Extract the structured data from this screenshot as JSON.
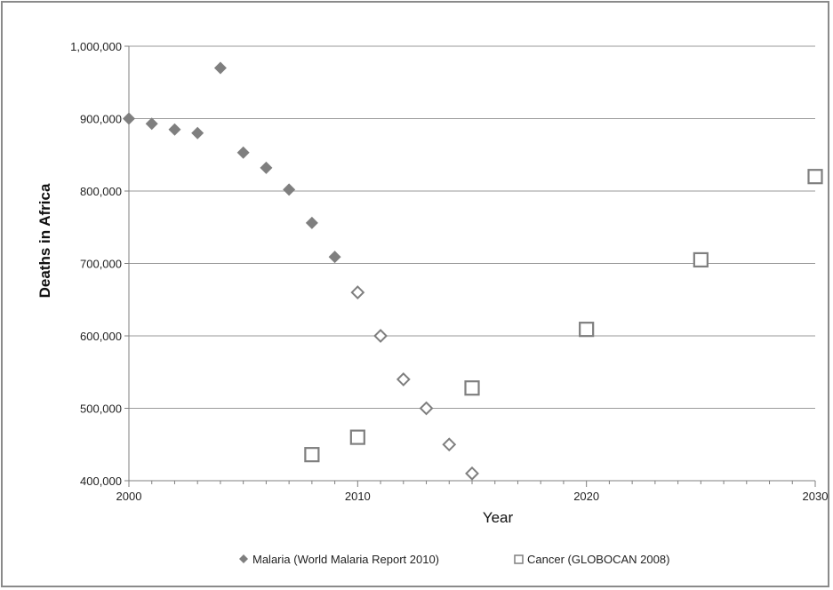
{
  "chart_data": {
    "type": "scatter",
    "xlabel": "Year",
    "ylabel": "Deaths in Africa",
    "xlim": [
      2000,
      2030
    ],
    "ylim": [
      400000,
      1000000
    ],
    "x_ticks": [
      2000,
      2010,
      2020,
      2030
    ],
    "y_ticks": [
      400000,
      500000,
      600000,
      700000,
      800000,
      900000,
      1000000
    ],
    "y_tick_labels": [
      "400,000",
      "500,000",
      "600,000",
      "700,000",
      "800,000",
      "900,000",
      "1,000,000"
    ],
    "grid": "horizontal",
    "legend_position": "bottom",
    "series": [
      {
        "name": "Malaria (World Malaria Report 2010)",
        "marker": "filled-diamond",
        "color": "#7f7f7f",
        "points": [
          {
            "x": 2000,
            "y": 900000
          },
          {
            "x": 2001,
            "y": 893000
          },
          {
            "x": 2002,
            "y": 885000
          },
          {
            "x": 2003,
            "y": 880000
          },
          {
            "x": 2004,
            "y": 970000
          },
          {
            "x": 2005,
            "y": 853000
          },
          {
            "x": 2006,
            "y": 832000
          },
          {
            "x": 2007,
            "y": 802000
          },
          {
            "x": 2008,
            "y": 756000
          },
          {
            "x": 2009,
            "y": 709000
          }
        ]
      },
      {
        "marker": "open-diamond",
        "color": "#7f7f7f",
        "points": [
          {
            "x": 2010,
            "y": 660000
          },
          {
            "x": 2011,
            "y": 600000
          },
          {
            "x": 2012,
            "y": 540000
          },
          {
            "x": 2013,
            "y": 500000
          },
          {
            "x": 2014,
            "y": 450000
          },
          {
            "x": 2015,
            "y": 410000
          }
        ]
      },
      {
        "name": "Cancer (GLOBOCAN 2008)",
        "marker": "open-square",
        "color": "#7f7f7f",
        "points": [
          {
            "x": 2008,
            "y": 436000
          },
          {
            "x": 2010,
            "y": 460000
          },
          {
            "x": 2015,
            "y": 528000
          },
          {
            "x": 2020,
            "y": 609000
          },
          {
            "x": 2025,
            "y": 705000
          },
          {
            "x": 2030,
            "y": 820000
          }
        ]
      }
    ]
  }
}
